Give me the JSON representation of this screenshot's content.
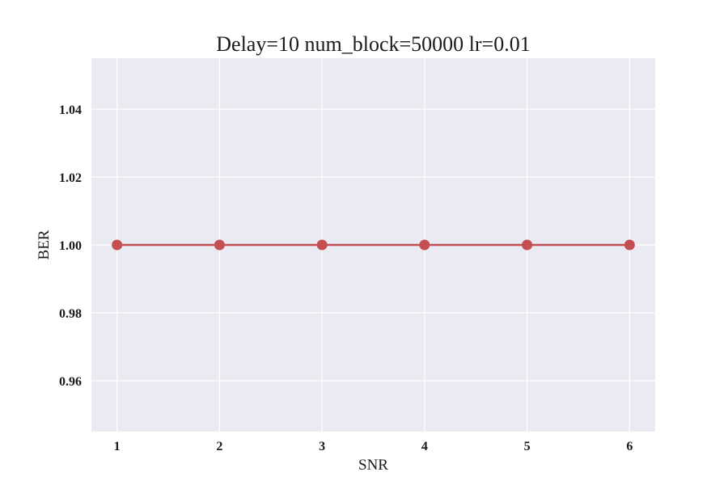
{
  "chart_data": {
    "type": "line",
    "title": "Delay=10 num_block=50000 lr=0.01",
    "xlabel": "SNR",
    "ylabel": "BER",
    "x": [
      1,
      2,
      3,
      4,
      5,
      6
    ],
    "series": [
      {
        "values": [
          1.0,
          1.0,
          1.0,
          1.0,
          1.0,
          1.0
        ],
        "color": "#c44e52",
        "marker": "circle"
      }
    ],
    "xlim": [
      0.75,
      6.25
    ],
    "ylim": [
      0.945,
      1.055
    ],
    "xticks": [
      1,
      2,
      3,
      4,
      5,
      6
    ],
    "xtick_labels": [
      "1",
      "2",
      "3",
      "4",
      "5",
      "6"
    ],
    "yticks": [
      0.96,
      0.98,
      1.0,
      1.02,
      1.04
    ],
    "ytick_labels": [
      "0.96",
      "0.98",
      "1.00",
      "1.02",
      "1.04"
    ],
    "grid": true,
    "background_color": "#eaeaf2",
    "grid_color": "#ffffff"
  }
}
